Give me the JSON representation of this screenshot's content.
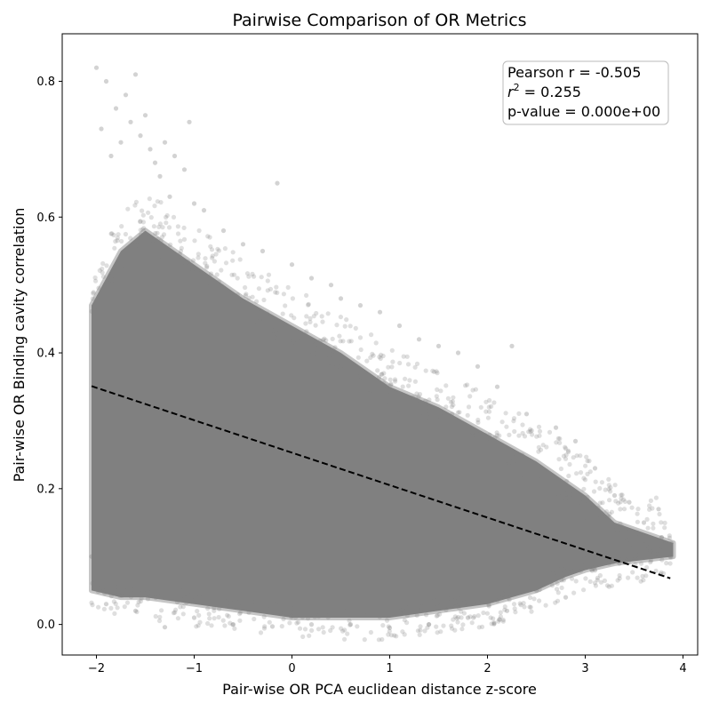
{
  "chart_data": {
    "type": "scatter",
    "title": "Pairwise Comparison of OR Metrics",
    "xlabel": "Pair-wise OR PCA euclidean distance z-score",
    "ylabel": "Pair-wise OR Binding cavity correlation",
    "xlim": [
      -2.35,
      4.15
    ],
    "ylim": [
      -0.045,
      0.87
    ],
    "xticks": [
      -2,
      -1,
      0,
      1,
      2,
      3,
      4
    ],
    "yticks": [
      0.0,
      0.2,
      0.4,
      0.6,
      0.8
    ],
    "xtick_labels": [
      "−2",
      "−1",
      "0",
      "1",
      "2",
      "3",
      "4"
    ],
    "ytick_labels": [
      "0.0",
      "0.2",
      "0.4",
      "0.6",
      "0.8"
    ],
    "grid": false,
    "point_color": "#808080",
    "point_alpha": 0.25,
    "fit_line": {
      "style": "dashed",
      "color": "#000000",
      "x": [
        -2.05,
        3.87
      ],
      "y": [
        0.351,
        0.068
      ]
    },
    "annotation": {
      "placement": "top-right",
      "pearson_text": "Pearson r = -0.505",
      "r2_symbol": "r",
      "r2_sup": "2",
      "r2_value": " = 0.255",
      "pvalue_text": "p-value = 0.000e+00"
    },
    "cloud_envelope": {
      "x": [
        -2.05,
        -1.75,
        -1.5,
        -1.0,
        -0.5,
        0.0,
        0.5,
        1.0,
        1.5,
        2.0,
        2.5,
        2.8,
        3.0,
        3.3,
        3.9
      ],
      "upper": [
        0.47,
        0.55,
        0.58,
        0.53,
        0.48,
        0.44,
        0.4,
        0.35,
        0.32,
        0.28,
        0.24,
        0.21,
        0.19,
        0.15,
        0.12
      ],
      "lower": [
        0.05,
        0.04,
        0.04,
        0.03,
        0.02,
        0.01,
        0.01,
        0.01,
        0.02,
        0.03,
        0.05,
        0.07,
        0.08,
        0.09,
        0.1
      ]
    },
    "outliers": [
      [
        -2.0,
        0.82
      ],
      [
        -1.95,
        0.73
      ],
      [
        -1.9,
        0.8
      ],
      [
        -1.85,
        0.69
      ],
      [
        -1.8,
        0.76
      ],
      [
        -1.75,
        0.71
      ],
      [
        -1.7,
        0.78
      ],
      [
        -1.65,
        0.74
      ],
      [
        -1.6,
        0.81
      ],
      [
        -1.55,
        0.72
      ],
      [
        -1.5,
        0.75
      ],
      [
        -1.45,
        0.7
      ],
      [
        -1.4,
        0.68
      ],
      [
        -1.35,
        0.66
      ],
      [
        -1.3,
        0.71
      ],
      [
        -1.25,
        0.63
      ],
      [
        -1.2,
        0.69
      ],
      [
        -1.1,
        0.67
      ],
      [
        -1.05,
        0.74
      ],
      [
        -1.0,
        0.62
      ],
      [
        -0.9,
        0.61
      ],
      [
        -0.7,
        0.58
      ],
      [
        -0.5,
        0.56
      ],
      [
        -0.3,
        0.55
      ],
      [
        -0.15,
        0.65
      ],
      [
        0.0,
        0.53
      ],
      [
        0.2,
        0.51
      ],
      [
        0.4,
        0.5
      ],
      [
        0.5,
        0.48
      ],
      [
        0.7,
        0.47
      ],
      [
        0.9,
        0.46
      ],
      [
        1.1,
        0.44
      ],
      [
        1.3,
        0.42
      ],
      [
        1.5,
        0.41
      ],
      [
        1.7,
        0.4
      ],
      [
        1.9,
        0.38
      ],
      [
        2.1,
        0.35
      ],
      [
        2.25,
        0.41
      ],
      [
        2.4,
        0.31
      ],
      [
        2.7,
        0.29
      ],
      [
        2.9,
        0.27
      ],
      [
        3.1,
        0.23
      ],
      [
        3.3,
        0.19
      ],
      [
        3.45,
        0.18
      ],
      [
        3.6,
        0.15
      ],
      [
        3.75,
        0.17
      ],
      [
        3.88,
        0.12
      ],
      [
        3.35,
        0.09
      ],
      [
        3.1,
        0.08
      ],
      [
        2.8,
        0.04
      ],
      [
        2.5,
        0.05
      ],
      [
        2.2,
        0.02
      ],
      [
        1.8,
        0.01
      ],
      [
        1.4,
        0.0
      ],
      [
        1.0,
        -0.005
      ],
      [
        0.6,
        0.0
      ],
      [
        0.2,
        0.0
      ],
      [
        -0.2,
        -0.003
      ],
      [
        -0.6,
        0.0
      ],
      [
        -1.0,
        0.01
      ],
      [
        -1.3,
        -0.004
      ],
      [
        -1.6,
        0.02
      ],
      [
        -1.9,
        0.03
      ],
      [
        -2.05,
        0.1
      ]
    ]
  }
}
